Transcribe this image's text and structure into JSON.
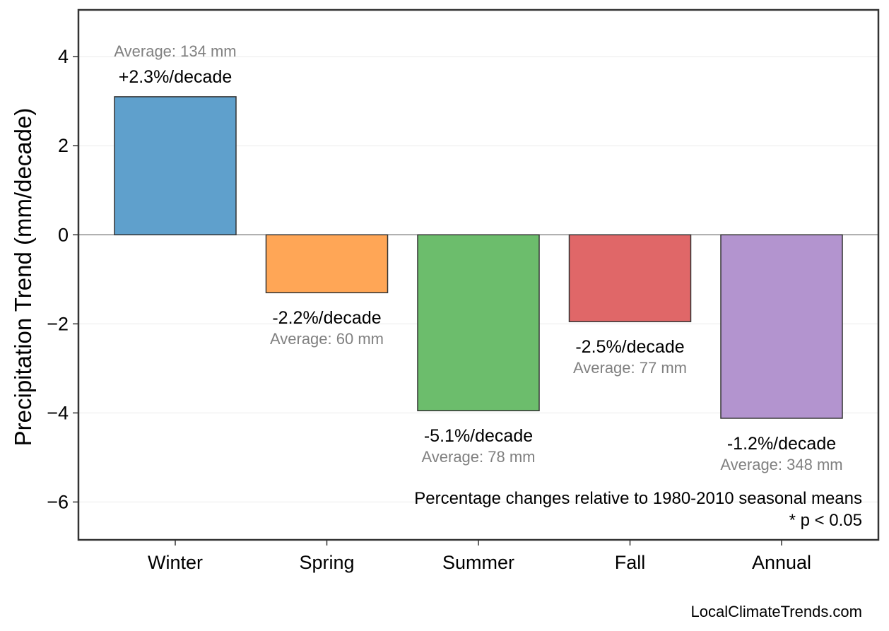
{
  "chart_data": {
    "type": "bar",
    "categories": [
      "Winter",
      "Spring",
      "Summer",
      "Fall",
      "Annual"
    ],
    "values": [
      3.1,
      -1.3,
      -3.95,
      -1.95,
      -4.12
    ],
    "bar_colors": [
      "#5fa0cc",
      "#ffa656",
      "#6cbd6c",
      "#e06768",
      "#b394cf"
    ],
    "percent_labels": [
      "+2.3%/decade",
      "-2.2%/decade",
      "-5.1%/decade",
      "-2.5%/decade",
      "-1.2%/decade"
    ],
    "average_labels": [
      "Average: 134 mm",
      "Average: 60 mm",
      "Average: 78 mm",
      "Average: 77 mm",
      "Average: 348 mm"
    ],
    "xlabel": "",
    "ylabel": "Precipitation Trend (mm/decade)",
    "ylim": [
      -6.85,
      5.05
    ],
    "yticks": [
      4,
      2,
      0,
      -2,
      -4,
      -6
    ],
    "ytick_labels": [
      "4",
      "2",
      "0",
      "−2",
      "−4",
      "−6"
    ],
    "grid": "horizontal",
    "annotations": [
      "Percentage changes relative to 1980-2010 seasonal means",
      "* p < 0.05"
    ]
  },
  "footer": {
    "source": "LocalClimateTrends.com"
  }
}
